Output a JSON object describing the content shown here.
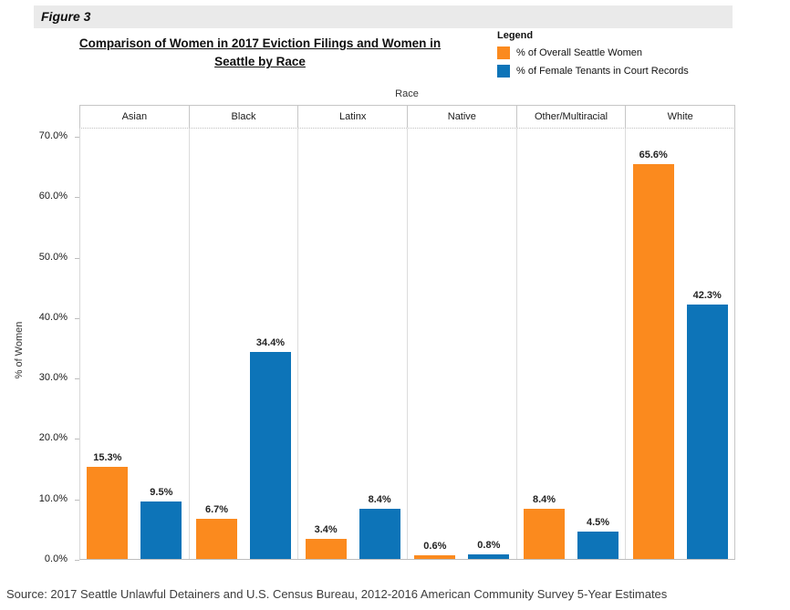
{
  "figure_label": "Figure 3",
  "title_lines": [
    "Comparison of Women in 2017 Eviction Filings and Women in",
    "Seattle by Race"
  ],
  "legend": {
    "title": "Legend",
    "items": [
      {
        "key": "overall",
        "label": "% of Overall Seattle Women",
        "color": "#fb8a1e"
      },
      {
        "key": "tenants",
        "label": "% of Female Tenants in Court Records",
        "color": "#0d74b8"
      }
    ]
  },
  "chart_data": {
    "type": "bar",
    "title": "Comparison of Women in 2017 Eviction Filings and Women in Seattle by Race",
    "xlabel": "Race",
    "ylabel": "% of Women",
    "categories": [
      "Asian",
      "Black",
      "Latinx",
      "Native",
      "Other/Multiracial",
      "White"
    ],
    "series": [
      {
        "key": "overall",
        "name": "% of Overall Seattle Women",
        "color": "#fb8a1e",
        "values": [
          15.3,
          6.7,
          3.4,
          0.6,
          8.4,
          65.6
        ],
        "value_labels": [
          "15.3%",
          "6.7%",
          "3.4%",
          "0.6%",
          "8.4%",
          "65.6%"
        ]
      },
      {
        "key": "tenants",
        "name": "% of Female Tenants in Court Records",
        "color": "#0d74b8",
        "values": [
          9.5,
          34.4,
          8.4,
          0.8,
          4.5,
          42.3
        ],
        "value_labels": [
          "9.5%",
          "34.4%",
          "8.4%",
          "0.8%",
          "4.5%",
          "42.3%"
        ]
      }
    ],
    "y_ticks": [
      {
        "value": 0,
        "label": "0.0%"
      },
      {
        "value": 10,
        "label": "10.0%"
      },
      {
        "value": 20,
        "label": "20.0%"
      },
      {
        "value": 30,
        "label": "30.0%"
      },
      {
        "value": 40,
        "label": "40.0%"
      },
      {
        "value": 50,
        "label": "50.0%"
      },
      {
        "value": 60,
        "label": "60.0%"
      },
      {
        "value": 70,
        "label": "70.0%"
      }
    ],
    "ylim": [
      0,
      71.5
    ],
    "grid": false,
    "legend_position": "top-right"
  },
  "source_note": "Source: 2017 Seattle Unlawful Detainers and U.S. Census Bureau, 2012-2016 American Community Survey 5-Year Estimates"
}
